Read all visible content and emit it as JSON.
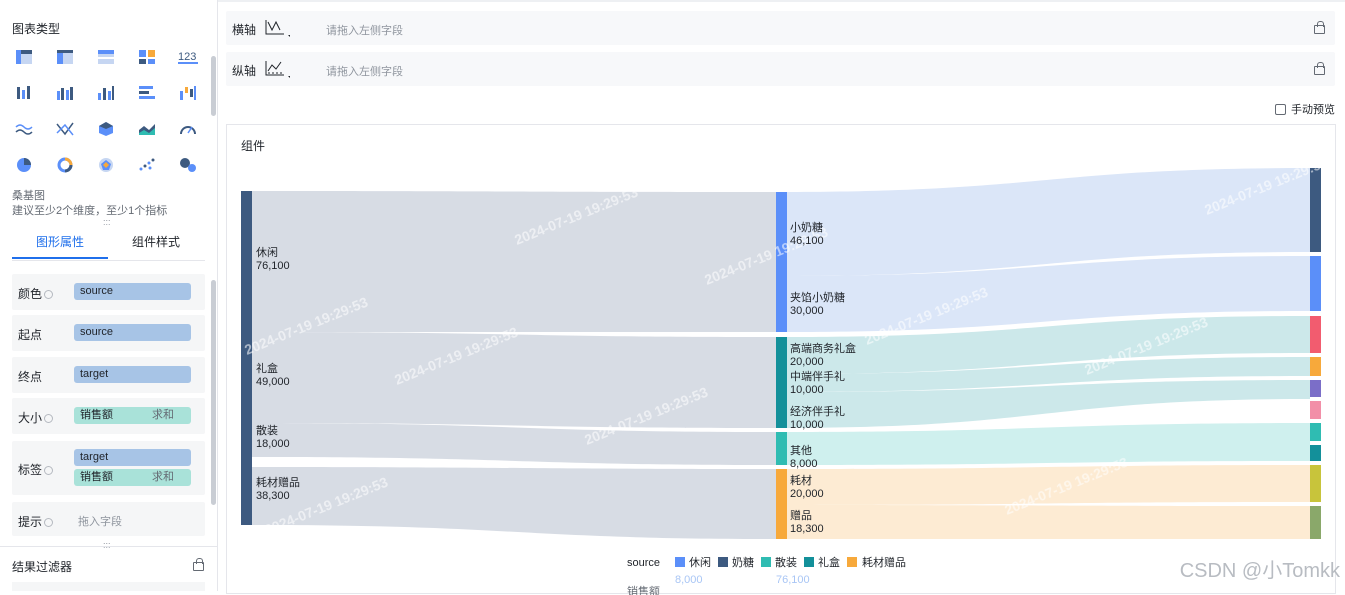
{
  "left": {
    "chart_type_title": "图表类型",
    "chart_icons": [
      "table-icon",
      "pivot-table-icon",
      "detail-table-icon",
      "mosaic-icon",
      "kpi-number-icon",
      "grouped-bar-icon",
      "column-icon",
      "column-stack-icon",
      "bar-icon",
      "waterfall-icon",
      "wave-line-icon",
      "cross-line-icon",
      "cube-icon",
      "area-icon",
      "gauge-icon",
      "pie-icon",
      "donut-icon",
      "radar-icon",
      "scatter-icon",
      "bubble-icon"
    ],
    "selected_chart_name": "桑基图",
    "selected_chart_hint": "建议至少2个维度，至少1个指标",
    "tabs": [
      "图形属性",
      "组件样式"
    ],
    "props": [
      {
        "label": "颜色",
        "fields": [
          {
            "text": "source",
            "kind": "dim"
          }
        ]
      },
      {
        "label": "起点",
        "fields": [
          {
            "text": "source",
            "kind": "dim"
          }
        ]
      },
      {
        "label": "终点",
        "fields": [
          {
            "text": "target",
            "kind": "dim"
          }
        ]
      },
      {
        "label": "大小",
        "fields": [
          {
            "text": "销售额",
            "kind": "mea",
            "agg": "求和"
          }
        ]
      },
      {
        "label": "标签",
        "fields": [
          {
            "text": "target",
            "kind": "dim"
          },
          {
            "text": "销售额",
            "kind": "mea",
            "agg": "求和"
          }
        ]
      },
      {
        "label": "提示",
        "placeholder": "拖入字段"
      }
    ],
    "result_filter": "结果过滤器",
    "grip": ":::"
  },
  "axes": {
    "x_label": "横轴",
    "y_label": "纵轴",
    "placeholder": "请拖入左侧字段"
  },
  "manual_preview": "手动预览",
  "card_title": "组件",
  "watermark": "CSDN @小Tomkk",
  "chart_data": {
    "type": "sankey",
    "watermark_text": "2024-07-19 19:29:53",
    "sources": [
      {
        "name": "休闲",
        "value": "76,100",
        "color": "#3d5a80"
      },
      {
        "name": "礼盒",
        "value": "49,000",
        "color": "#3d5a80"
      },
      {
        "name": "散装",
        "value": "18,000",
        "color": "#3d5a80"
      },
      {
        "name": "耗材赠品",
        "value": "38,300",
        "color": "#3d5a80"
      }
    ],
    "middle": [
      {
        "name": "奶糖",
        "color": "#5b8ff9"
      },
      {
        "name": "礼盒",
        "color": "#13909a"
      },
      {
        "name": "散装",
        "color": "#2fbcb2"
      },
      {
        "name": "耗材赠品",
        "color": "#f7a93b"
      }
    ],
    "targets": [
      {
        "name": "小奶糖",
        "value": "46,100"
      },
      {
        "name": "夹馅小奶糖",
        "value": "30,000"
      },
      {
        "name": "高端商务礼盒",
        "value": "20,000"
      },
      {
        "name": "中端伴手礼",
        "value": "10,000"
      },
      {
        "name": "经济伴手礼",
        "value": "10,000"
      },
      {
        "name": "其他",
        "value": "8,000"
      },
      {
        "name": "耗材",
        "value": "20,000"
      },
      {
        "name": "赠品",
        "value": "18,300"
      }
    ],
    "legend_title": "source",
    "legend": [
      {
        "name": "休闲",
        "color": "#5b8ff9"
      },
      {
        "name": "奶糖",
        "color": "#3d5a80"
      },
      {
        "name": "散装",
        "color": "#2fbcb2"
      },
      {
        "name": "礼盒",
        "color": "#13909a"
      },
      {
        "name": "耗材赠品",
        "color": "#f7a93b"
      }
    ],
    "range_min": "8,000",
    "range_max": "76,100",
    "size_legend_label": "销售额"
  }
}
